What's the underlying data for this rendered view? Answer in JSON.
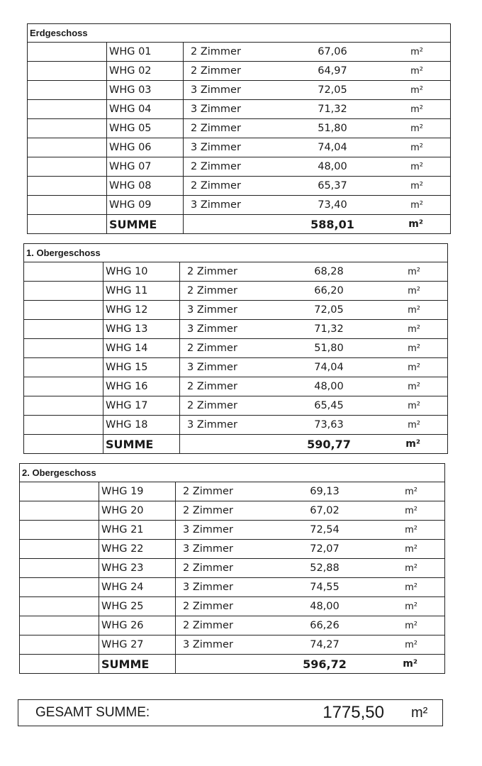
{
  "floors": [
    {
      "title": "Erdgeschoss",
      "units": [
        {
          "id": "WHG 01",
          "rooms": "2 Zimmer",
          "area": "67,06",
          "unit": "m²"
        },
        {
          "id": "WHG 02",
          "rooms": "2 Zimmer",
          "area": "64,97",
          "unit": "m²"
        },
        {
          "id": "WHG 03",
          "rooms": "3 Zimmer",
          "area": "72,05",
          "unit": "m²"
        },
        {
          "id": "WHG 04",
          "rooms": "3 Zimmer",
          "area": "71,32",
          "unit": "m²"
        },
        {
          "id": "WHG 05",
          "rooms": "2 Zimmer",
          "area": "51,80",
          "unit": "m²"
        },
        {
          "id": "WHG 06",
          "rooms": "3 Zimmer",
          "area": "74,04",
          "unit": "m²"
        },
        {
          "id": "WHG 07",
          "rooms": "2 Zimmer",
          "area": "48,00",
          "unit": "m²"
        },
        {
          "id": "WHG 08",
          "rooms": "2 Zimmer",
          "area": "65,37",
          "unit": "m²"
        },
        {
          "id": "WHG 09",
          "rooms": "3 Zimmer",
          "area": "73,40",
          "unit": "m²"
        }
      ],
      "sum_label": "SUMME",
      "sum_value": "588,01",
      "sum_unit": "m²"
    },
    {
      "title": "1. Obergeschoss",
      "units": [
        {
          "id": "WHG 10",
          "rooms": "2 Zimmer",
          "area": "68,28",
          "unit": "m²"
        },
        {
          "id": "WHG 11",
          "rooms": "2 Zimmer",
          "area": "66,20",
          "unit": "m²"
        },
        {
          "id": "WHG 12",
          "rooms": "3 Zimmer",
          "area": "72,05",
          "unit": "m²"
        },
        {
          "id": "WHG 13",
          "rooms": "3 Zimmer",
          "area": "71,32",
          "unit": "m²"
        },
        {
          "id": "WHG 14",
          "rooms": "2 Zimmer",
          "area": "51,80",
          "unit": "m²"
        },
        {
          "id": "WHG 15",
          "rooms": "3 Zimmer",
          "area": "74,04",
          "unit": "m²"
        },
        {
          "id": "WHG 16",
          "rooms": "2 Zimmer",
          "area": "48,00",
          "unit": "m²"
        },
        {
          "id": "WHG 17",
          "rooms": "2 Zimmer",
          "area": "65,45",
          "unit": "m²"
        },
        {
          "id": "WHG 18",
          "rooms": "3 Zimmer",
          "area": "73,63",
          "unit": "m²"
        }
      ],
      "sum_label": "SUMME",
      "sum_value": "590,77",
      "sum_unit": "m²"
    },
    {
      "title": "2. Obergeschoss",
      "units": [
        {
          "id": "WHG 19",
          "rooms": "2 Zimmer",
          "area": "69,13",
          "unit": "m²"
        },
        {
          "id": "WHG 20",
          "rooms": "2 Zimmer",
          "area": "67,02",
          "unit": "m²"
        },
        {
          "id": "WHG 21",
          "rooms": "3 Zimmer",
          "area": "72,54",
          "unit": "m²"
        },
        {
          "id": "WHG 22",
          "rooms": "3 Zimmer",
          "area": "72,07",
          "unit": "m²"
        },
        {
          "id": "WHG 23",
          "rooms": "2 Zimmer",
          "area": "52,88",
          "unit": "m²"
        },
        {
          "id": "WHG 24",
          "rooms": "3 Zimmer",
          "area": "74,55",
          "unit": "m²"
        },
        {
          "id": "WHG 25",
          "rooms": "2 Zimmer",
          "area": "48,00",
          "unit": "m²"
        },
        {
          "id": "WHG 26",
          "rooms": "2 Zimmer",
          "area": "66,26",
          "unit": "m²"
        },
        {
          "id": "WHG 27",
          "rooms": "3 Zimmer",
          "area": "74,27",
          "unit": "m²"
        }
      ],
      "sum_label": "SUMME",
      "sum_value": "596,72",
      "sum_unit": "m²"
    }
  ],
  "total": {
    "label": "GESAMT SUMME:",
    "value": "1775,50",
    "unit": "m²"
  }
}
